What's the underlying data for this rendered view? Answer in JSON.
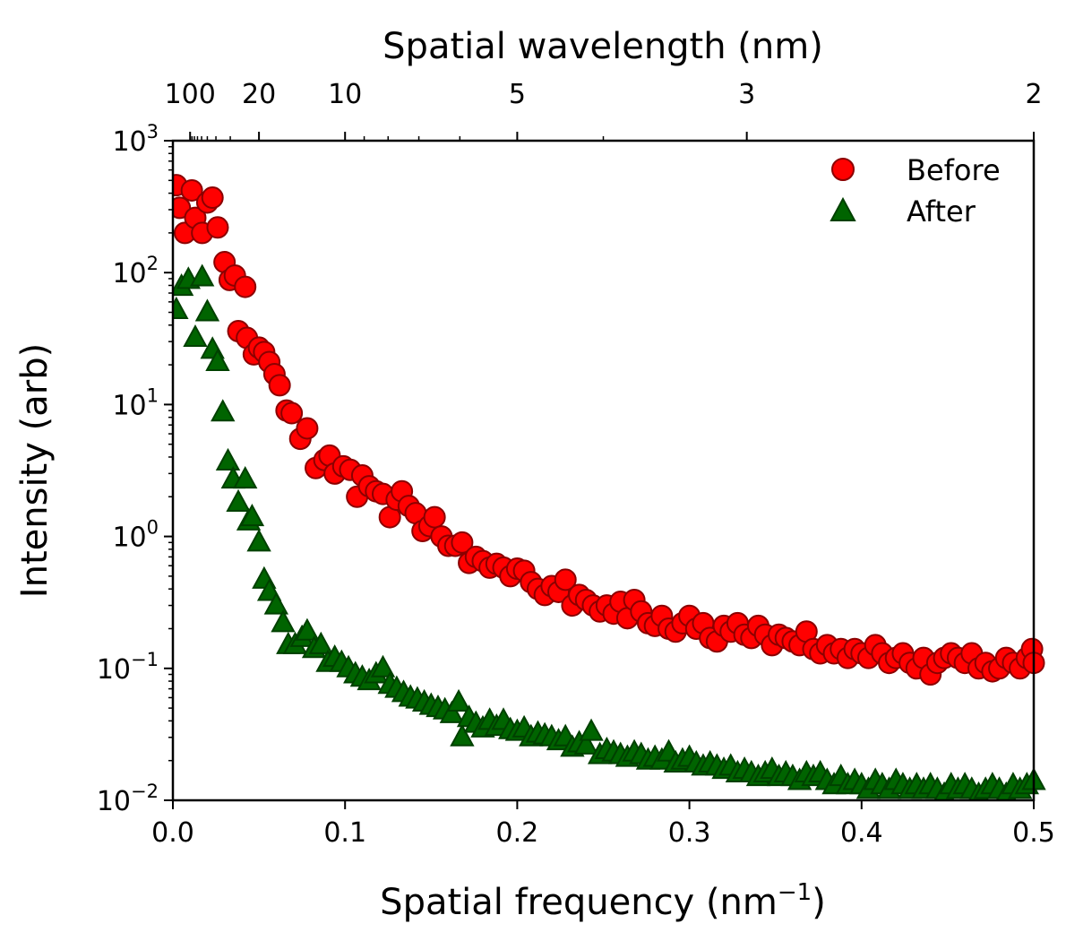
{
  "chart_data": {
    "type": "scatter",
    "xlabel": "Spatial frequency (nm",
    "xlabel_exp": "−1",
    "xlabel_close": ")",
    "ylabel": "Intensity (arb)",
    "top_xlabel": "Spatial wavelength (nm)",
    "xlim": [
      0.0,
      0.5
    ],
    "ylim": [
      0.01,
      1000
    ],
    "yscale": "log",
    "x_ticks": [
      "0.0",
      "0.1",
      "0.2",
      "0.3",
      "0.4",
      "0.5"
    ],
    "y_ticks": [
      {
        "base": "10",
        "exp": "−2"
      },
      {
        "base": "10",
        "exp": "−1"
      },
      {
        "base": "10",
        "exp": "0"
      },
      {
        "base": "10",
        "exp": "1"
      },
      {
        "base": "10",
        "exp": "2"
      },
      {
        "base": "10",
        "exp": "3"
      }
    ],
    "top_ticks": [
      {
        "label": "100",
        "wavelength": 100
      },
      {
        "label": "20",
        "wavelength": 20
      },
      {
        "label": "10",
        "wavelength": 10
      },
      {
        "label": "5",
        "wavelength": 5
      },
      {
        "label": "3",
        "wavelength": 3
      },
      {
        "label": "2",
        "wavelength": 2
      }
    ],
    "legend_position": "top-right",
    "series": [
      {
        "name": "Before",
        "marker": "circle",
        "fill": "#ff0000",
        "edge": "#8b0000",
        "points": [
          [
            0.002,
            460
          ],
          [
            0.004,
            310
          ],
          [
            0.007,
            200
          ],
          [
            0.011,
            420
          ],
          [
            0.013,
            260
          ],
          [
            0.017,
            200
          ],
          [
            0.02,
            340
          ],
          [
            0.023,
            370
          ],
          [
            0.026,
            220
          ],
          [
            0.03,
            120
          ],
          [
            0.033,
            88
          ],
          [
            0.036,
            95
          ],
          [
            0.042,
            78
          ],
          [
            0.038,
            36
          ],
          [
            0.043,
            32
          ],
          [
            0.047,
            24
          ],
          [
            0.05,
            27
          ],
          [
            0.053,
            25
          ],
          [
            0.056,
            21
          ],
          [
            0.059,
            17
          ],
          [
            0.062,
            14
          ],
          [
            0.066,
            9
          ],
          [
            0.069,
            8.6
          ],
          [
            0.074,
            5.5
          ],
          [
            0.078,
            6.6
          ],
          [
            0.083,
            3.3
          ],
          [
            0.088,
            3.8
          ],
          [
            0.091,
            4.1
          ],
          [
            0.094,
            3.0
          ],
          [
            0.099,
            3.4
          ],
          [
            0.103,
            3.2
          ],
          [
            0.107,
            2.0
          ],
          [
            0.11,
            2.9
          ],
          [
            0.114,
            2.4
          ],
          [
            0.118,
            2.2
          ],
          [
            0.122,
            2.1
          ],
          [
            0.126,
            1.4
          ],
          [
            0.13,
            1.9
          ],
          [
            0.133,
            2.2
          ],
          [
            0.137,
            1.7
          ],
          [
            0.141,
            1.5
          ],
          [
            0.145,
            1.1
          ],
          [
            0.149,
            1.2
          ],
          [
            0.152,
            1.4
          ],
          [
            0.156,
            1.0
          ],
          [
            0.16,
            0.85
          ],
          [
            0.164,
            0.85
          ],
          [
            0.168,
            0.9
          ],
          [
            0.172,
            0.63
          ],
          [
            0.176,
            0.7
          ],
          [
            0.18,
            0.65
          ],
          [
            0.184,
            0.58
          ],
          [
            0.188,
            0.62
          ],
          [
            0.192,
            0.58
          ],
          [
            0.196,
            0.5
          ],
          [
            0.2,
            0.57
          ],
          [
            0.204,
            0.55
          ],
          [
            0.208,
            0.45
          ],
          [
            0.212,
            0.4
          ],
          [
            0.216,
            0.36
          ],
          [
            0.22,
            0.42
          ],
          [
            0.224,
            0.38
          ],
          [
            0.228,
            0.47
          ],
          [
            0.232,
            0.3
          ],
          [
            0.236,
            0.36
          ],
          [
            0.24,
            0.33
          ],
          [
            0.244,
            0.3
          ],
          [
            0.248,
            0.27
          ],
          [
            0.252,
            0.3
          ],
          [
            0.256,
            0.26
          ],
          [
            0.26,
            0.32
          ],
          [
            0.264,
            0.24
          ],
          [
            0.268,
            0.33
          ],
          [
            0.272,
            0.27
          ],
          [
            0.276,
            0.22
          ],
          [
            0.28,
            0.21
          ],
          [
            0.284,
            0.25
          ],
          [
            0.288,
            0.2
          ],
          [
            0.292,
            0.19
          ],
          [
            0.296,
            0.22
          ],
          [
            0.3,
            0.25
          ],
          [
            0.304,
            0.2
          ],
          [
            0.308,
            0.22
          ],
          [
            0.312,
            0.17
          ],
          [
            0.316,
            0.16
          ],
          [
            0.32,
            0.21
          ],
          [
            0.324,
            0.19
          ],
          [
            0.328,
            0.22
          ],
          [
            0.332,
            0.18
          ],
          [
            0.336,
            0.17
          ],
          [
            0.34,
            0.21
          ],
          [
            0.344,
            0.18
          ],
          [
            0.348,
            0.15
          ],
          [
            0.352,
            0.18
          ],
          [
            0.356,
            0.17
          ],
          [
            0.36,
            0.16
          ],
          [
            0.364,
            0.15
          ],
          [
            0.368,
            0.19
          ],
          [
            0.372,
            0.14
          ],
          [
            0.376,
            0.13
          ],
          [
            0.38,
            0.15
          ],
          [
            0.384,
            0.13
          ],
          [
            0.388,
            0.14
          ],
          [
            0.392,
            0.12
          ],
          [
            0.396,
            0.14
          ],
          [
            0.4,
            0.13
          ],
          [
            0.404,
            0.12
          ],
          [
            0.408,
            0.15
          ],
          [
            0.412,
            0.13
          ],
          [
            0.416,
            0.11
          ],
          [
            0.42,
            0.12
          ],
          [
            0.424,
            0.13
          ],
          [
            0.428,
            0.11
          ],
          [
            0.432,
            0.1
          ],
          [
            0.436,
            0.12
          ],
          [
            0.44,
            0.09
          ],
          [
            0.444,
            0.11
          ],
          [
            0.448,
            0.12
          ],
          [
            0.452,
            0.13
          ],
          [
            0.456,
            0.12
          ],
          [
            0.46,
            0.11
          ],
          [
            0.464,
            0.13
          ],
          [
            0.468,
            0.1
          ],
          [
            0.472,
            0.11
          ],
          [
            0.476,
            0.095
          ],
          [
            0.48,
            0.1
          ],
          [
            0.484,
            0.12
          ],
          [
            0.488,
            0.11
          ],
          [
            0.492,
            0.1
          ],
          [
            0.496,
            0.12
          ],
          [
            0.499,
            0.14
          ],
          [
            0.5,
            0.11
          ]
        ]
      },
      {
        "name": "After",
        "marker": "triangle",
        "fill": "#006400",
        "edge": "#004000",
        "points": [
          [
            0.002,
            52
          ],
          [
            0.005,
            78
          ],
          [
            0.009,
            88
          ],
          [
            0.013,
            32
          ],
          [
            0.017,
            92
          ],
          [
            0.02,
            50
          ],
          [
            0.023,
            26
          ],
          [
            0.026,
            21
          ],
          [
            0.029,
            8.7
          ],
          [
            0.032,
            3.7
          ],
          [
            0.035,
            2.7
          ],
          [
            0.038,
            1.8
          ],
          [
            0.042,
            2.7
          ],
          [
            0.044,
            1.3
          ],
          [
            0.046,
            1.4
          ],
          [
            0.05,
            0.9
          ],
          [
            0.053,
            0.47
          ],
          [
            0.056,
            0.38
          ],
          [
            0.06,
            0.3
          ],
          [
            0.064,
            0.22
          ],
          [
            0.067,
            0.15
          ],
          [
            0.071,
            0.15
          ],
          [
            0.075,
            0.17
          ],
          [
            0.078,
            0.19
          ],
          [
            0.082,
            0.14
          ],
          [
            0.086,
            0.15
          ],
          [
            0.09,
            0.11
          ],
          [
            0.094,
            0.12
          ],
          [
            0.098,
            0.11
          ],
          [
            0.102,
            0.1
          ],
          [
            0.106,
            0.09
          ],
          [
            0.11,
            0.085
          ],
          [
            0.114,
            0.08
          ],
          [
            0.118,
            0.09
          ],
          [
            0.122,
            0.1
          ],
          [
            0.126,
            0.075
          ],
          [
            0.13,
            0.07
          ],
          [
            0.134,
            0.065
          ],
          [
            0.138,
            0.06
          ],
          [
            0.142,
            0.058
          ],
          [
            0.146,
            0.055
          ],
          [
            0.15,
            0.052
          ],
          [
            0.154,
            0.05
          ],
          [
            0.158,
            0.048
          ],
          [
            0.162,
            0.045
          ],
          [
            0.166,
            0.055
          ],
          [
            0.168,
            0.03
          ],
          [
            0.172,
            0.042
          ],
          [
            0.176,
            0.038
          ],
          [
            0.18,
            0.035
          ],
          [
            0.184,
            0.04
          ],
          [
            0.188,
            0.036
          ],
          [
            0.192,
            0.04
          ],
          [
            0.196,
            0.034
          ],
          [
            0.2,
            0.033
          ],
          [
            0.204,
            0.035
          ],
          [
            0.208,
            0.03
          ],
          [
            0.212,
            0.032
          ],
          [
            0.216,
            0.031
          ],
          [
            0.22,
            0.03
          ],
          [
            0.224,
            0.028
          ],
          [
            0.228,
            0.03
          ],
          [
            0.232,
            0.025
          ],
          [
            0.236,
            0.027
          ],
          [
            0.24,
            0.026
          ],
          [
            0.243,
            0.033
          ],
          [
            0.248,
            0.022
          ],
          [
            0.252,
            0.024
          ],
          [
            0.256,
            0.023
          ],
          [
            0.26,
            0.022
          ],
          [
            0.264,
            0.021
          ],
          [
            0.268,
            0.023
          ],
          [
            0.272,
            0.022
          ],
          [
            0.276,
            0.02
          ],
          [
            0.28,
            0.021
          ],
          [
            0.284,
            0.02
          ],
          [
            0.288,
            0.023
          ],
          [
            0.292,
            0.019
          ],
          [
            0.296,
            0.02
          ],
          [
            0.3,
            0.021
          ],
          [
            0.304,
            0.019
          ],
          [
            0.308,
            0.018
          ],
          [
            0.312,
            0.019
          ],
          [
            0.316,
            0.018
          ],
          [
            0.32,
            0.017
          ],
          [
            0.324,
            0.018
          ],
          [
            0.328,
            0.016
          ],
          [
            0.332,
            0.017
          ],
          [
            0.336,
            0.016
          ],
          [
            0.34,
            0.015
          ],
          [
            0.344,
            0.016
          ],
          [
            0.348,
            0.017
          ],
          [
            0.352,
            0.015
          ],
          [
            0.356,
            0.016
          ],
          [
            0.36,
            0.015
          ],
          [
            0.364,
            0.014
          ],
          [
            0.368,
            0.016
          ],
          [
            0.372,
            0.015
          ],
          [
            0.376,
            0.016
          ],
          [
            0.38,
            0.014
          ],
          [
            0.384,
            0.013
          ],
          [
            0.388,
            0.015
          ],
          [
            0.392,
            0.013
          ],
          [
            0.396,
            0.014
          ],
          [
            0.4,
            0.013
          ],
          [
            0.404,
            0.012
          ],
          [
            0.408,
            0.014
          ],
          [
            0.412,
            0.013
          ],
          [
            0.416,
            0.012
          ],
          [
            0.42,
            0.014
          ],
          [
            0.424,
            0.013
          ],
          [
            0.428,
            0.012
          ],
          [
            0.432,
            0.013
          ],
          [
            0.436,
            0.012
          ],
          [
            0.44,
            0.013
          ],
          [
            0.444,
            0.012
          ],
          [
            0.448,
            0.011
          ],
          [
            0.452,
            0.013
          ],
          [
            0.456,
            0.012
          ],
          [
            0.46,
            0.013
          ],
          [
            0.464,
            0.012
          ],
          [
            0.468,
            0.011
          ],
          [
            0.472,
            0.012
          ],
          [
            0.476,
            0.013
          ],
          [
            0.48,
            0.012
          ],
          [
            0.484,
            0.011
          ],
          [
            0.488,
            0.013
          ],
          [
            0.492,
            0.012
          ],
          [
            0.496,
            0.013
          ],
          [
            0.5,
            0.014
          ]
        ]
      }
    ]
  }
}
